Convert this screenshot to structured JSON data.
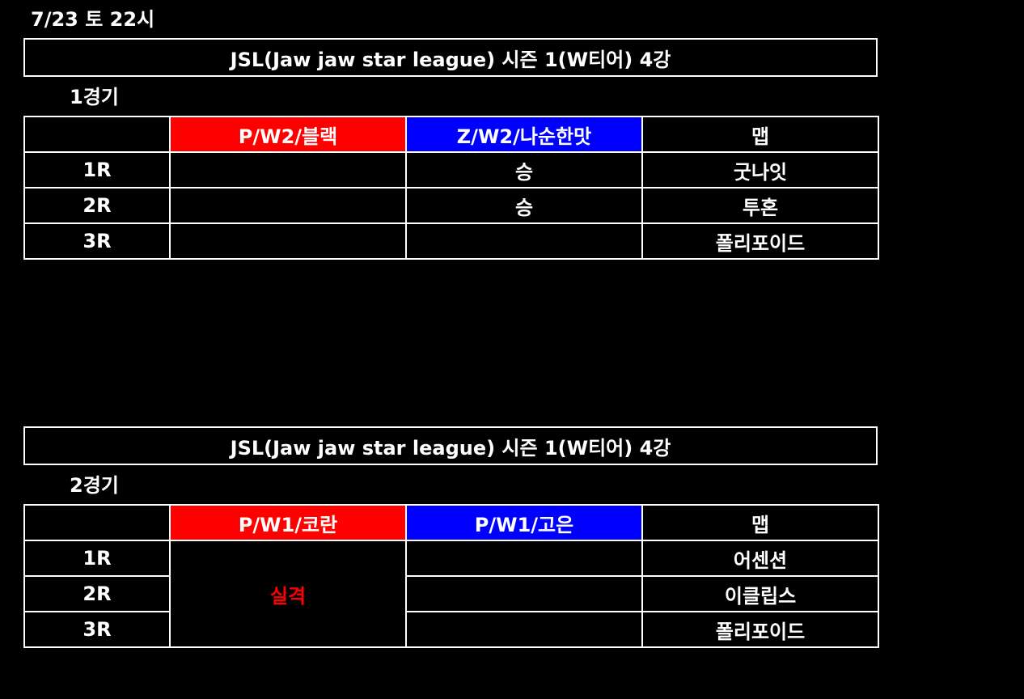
{
  "date": "7/23 토 22시",
  "colors": {
    "player1_bg": "#ff0000",
    "player2_bg": "#0000ff",
    "dq_text": "#ff0000"
  },
  "matches": [
    {
      "title": "JSL(Jaw jaw star league) 시즌 1(W티어) 4강",
      "label": "1경기",
      "player1": "P/W2/블랙",
      "player2": "Z/W2/나순한맛",
      "map_header": "맵",
      "rounds": [
        {
          "round": "1R",
          "p1": "",
          "p2": "승",
          "map": "굿나잇"
        },
        {
          "round": "2R",
          "p1": "",
          "p2": "승",
          "map": "투혼"
        },
        {
          "round": "3R",
          "p1": "",
          "p2": "",
          "map": "폴리포이드"
        }
      ]
    },
    {
      "title": "JSL(Jaw jaw star league) 시즌 1(W티어) 4강",
      "label": "2경기",
      "player1": "P/W1/코란",
      "player2": "P/W1/고은",
      "map_header": "맵",
      "p1_merged": "실격",
      "rounds": [
        {
          "round": "1R",
          "p2": "",
          "map": "어센션"
        },
        {
          "round": "2R",
          "p2": "",
          "map": "이클립스"
        },
        {
          "round": "3R",
          "p2": "",
          "map": "폴리포이드"
        }
      ]
    }
  ]
}
